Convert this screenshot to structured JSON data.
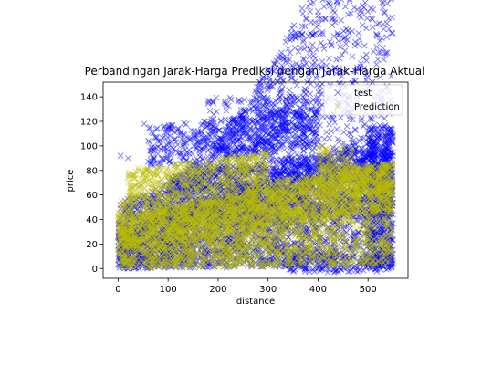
{
  "chart_data": {
    "type": "scatter",
    "title": "Perbandingan Jarak-Harga Prediksi dengan Jarak-Harga Aktual",
    "xlabel": "distance",
    "ylabel": "price",
    "xlim": [
      -30,
      580
    ],
    "ylim": [
      -8,
      152
    ],
    "xticks": [
      0,
      100,
      200,
      300,
      400,
      500
    ],
    "yticks": [
      0,
      20,
      40,
      60,
      80,
      100,
      120,
      140
    ],
    "grid": false,
    "legend_position": "top-right",
    "marker": "x",
    "series": [
      {
        "name": "test",
        "color": "#0000ff",
        "regions": [
          {
            "x0": 0,
            "x1": 550,
            "lower": [
              0,
              0.004,
              0
            ],
            "upper": [
              55,
              0.06,
              1
            ],
            "n": 2600
          },
          {
            "x0": 0,
            "x1": 550,
            "lower": [
              0,
              0.004,
              0
            ],
            "upper": [
              30,
              0.15,
              0
            ],
            "n": 1800
          },
          {
            "x0": 100,
            "x1": 550,
            "lower": [
              28,
              0.03,
              0
            ],
            "upper": [
              70,
              0.06,
              0
            ],
            "n": 1400
          },
          {
            "x0": 60,
            "x1": 400,
            "lower": [
              80,
              0.05,
              0
            ],
            "upper": [
              112,
              0.05,
              0
            ],
            "n": 520
          },
          {
            "x0": 180,
            "x1": 400,
            "lower": [
              112,
              0,
              0
            ],
            "upper": [
              140,
              0,
              0
            ],
            "n": 140
          },
          {
            "x0": 500,
            "x1": 550,
            "lower": [
              0,
              0,
              0
            ],
            "upper": [
              115,
              0,
              0
            ],
            "n": 500
          },
          {
            "x0": 340,
            "x1": 550,
            "lower": [
              -3,
              0,
              0
            ],
            "upper": [
              12,
              0,
              0
            ],
            "n": 220
          }
        ],
        "extras": [
          [
            52,
            118
          ],
          [
            20,
            90
          ],
          [
            5,
            92
          ],
          [
            450,
            150
          ],
          [
            505,
            122
          ],
          [
            420,
            140
          ],
          [
            300,
            147
          ],
          [
            470,
            130
          ]
        ]
      },
      {
        "name": "Prediction",
        "color": "#bcbd00",
        "regions": [
          {
            "x0": 0,
            "x1": 550,
            "lower": [
              0,
              0.004,
              0
            ],
            "upper": [
              42,
              0.08,
              0
            ],
            "n": 2600
          },
          {
            "x0": 0,
            "x1": 550,
            "lower": [
              15,
              0.06,
              0
            ],
            "upper": [
              55,
              0.06,
              0
            ],
            "n": 1500
          },
          {
            "x0": 20,
            "x1": 300,
            "lower": [
              55,
              0.06,
              0
            ],
            "upper": [
              78,
              0.06,
              0
            ],
            "n": 500
          },
          {
            "x0": 400,
            "x1": 550,
            "lower": [
              60,
              0,
              0
            ],
            "upper": [
              85,
              0,
              0
            ],
            "n": 220
          },
          {
            "x0": 400,
            "x1": 470,
            "lower": [
              80,
              0,
              0
            ],
            "upper": [
              100,
              0,
              0
            ],
            "n": 70
          }
        ],
        "extras": [
          [
            40,
            82
          ],
          [
            65,
            80
          ],
          [
            30,
            35
          ],
          [
            45,
            40
          ]
        ]
      }
    ]
  }
}
